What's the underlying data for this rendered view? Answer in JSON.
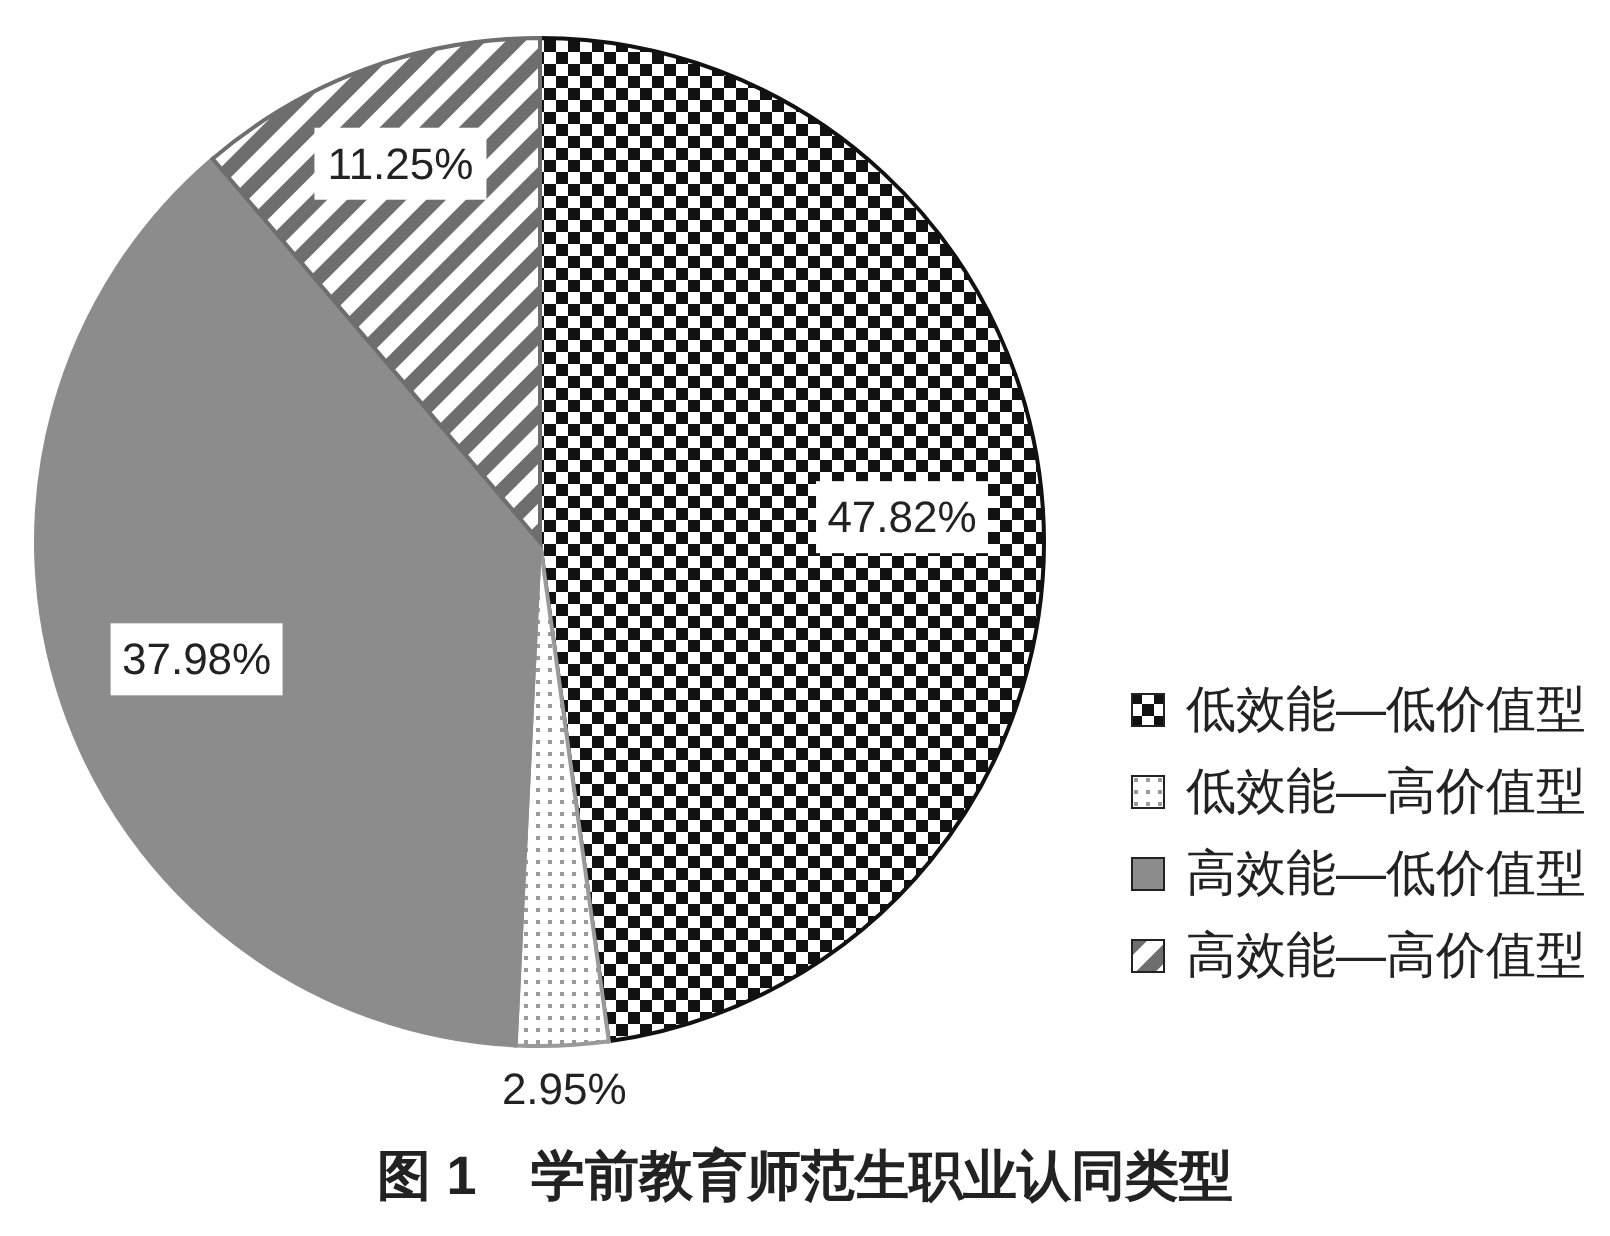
{
  "chart_data": {
    "type": "pie",
    "title": "图 1　学前教育师范生职业认同类型",
    "categories": [
      "低效能—低价值型",
      "低效能—高价值型",
      "高效能—低价值型",
      "高效能—高价值型"
    ],
    "values": [
      47.82,
      2.95,
      37.98,
      11.25
    ],
    "value_labels": [
      "47.82%",
      "2.95%",
      "37.98%",
      "11.25%"
    ],
    "colors": [
      "#111111",
      "#9a9a9a",
      "#8c8c8c",
      "#6e6e6e"
    ],
    "legend": "right"
  }
}
